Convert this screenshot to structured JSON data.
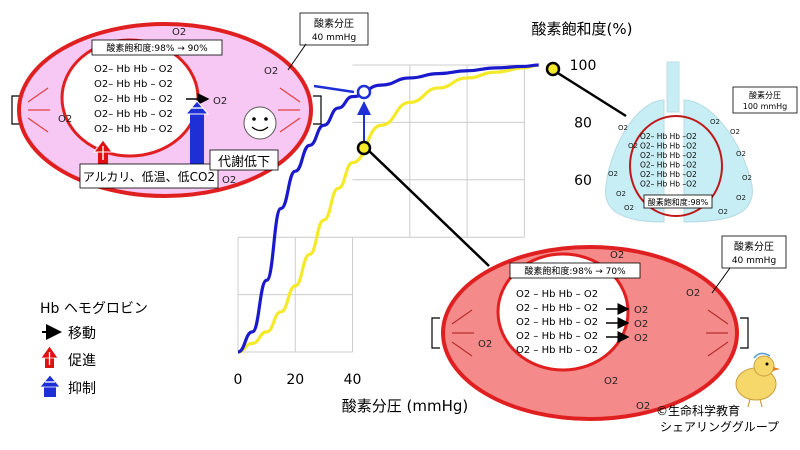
{
  "chart_data": {
    "type": "line",
    "title": "",
    "xlabel": "酸素分圧 (mmHg)",
    "ylabel": "酸素飽和度(%)",
    "x_ticks": [
      "0",
      "20",
      "40"
    ],
    "y_ticks": [
      "100",
      "80",
      "60"
    ],
    "xlim": [
      0,
      110
    ],
    "ylim": [
      0,
      100
    ],
    "grid": true,
    "series": [
      {
        "name": "",
        "color": "#1a1acc",
        "note_color": "blue",
        "x": [
          0,
          5,
          10,
          15,
          20,
          25,
          30,
          35,
          40,
          50,
          60,
          70,
          80,
          90,
          100,
          105
        ],
        "y": [
          0,
          7,
          25,
          50,
          63,
          72,
          79,
          85,
          89,
          93,
          95.5,
          97,
          98,
          99,
          99.5,
          100
        ]
      },
      {
        "name": "",
        "color": "#f5ea2a",
        "note_color": "yellow",
        "x": [
          0,
          5,
          10,
          15,
          20,
          25,
          30,
          35,
          40,
          50,
          60,
          70,
          80,
          90,
          100,
          105
        ],
        "y": [
          0,
          3,
          7,
          14,
          23,
          34,
          46,
          57,
          66,
          79,
          87,
          92,
          95.5,
          97.5,
          99,
          100
        ]
      }
    ]
  },
  "left_cell": {
    "saturation_label": "酸素飽和度:98% → 90%",
    "pressure_label": "酸素分圧",
    "pressure_value": "40 mmHg",
    "hb_rows": [
      "O2– Hb Hb – O2",
      "O2– Hb Hb – O2",
      "O2– Hb Hb – O2",
      "O2– Hb Hb – O2",
      "O2– Hb Hb – O2"
    ],
    "free_o2": "O2",
    "face": "☺",
    "promote_factors": "アルカリ、低温、低CO2",
    "suppress_factor": "代謝低下"
  },
  "right_cell": {
    "saturation_label": "酸素飽和度:98% → 70%",
    "pressure_label": "酸素分圧",
    "pressure_value": "40 mmHg",
    "hb_rows": [
      "O2 – Hb Hb – O2",
      "O2 – Hb Hb – O2",
      "O2 – Hb Hb – O2",
      "O2 – Hb Hb – O2",
      "O2 – Hb Hb – O2"
    ],
    "free_o2": "O2"
  },
  "lung": {
    "pressure_label": "酸素分圧",
    "pressure_value": "100 mmHg",
    "saturation_label": "酸素飽和度:98%",
    "hb_rows": [
      "O2– Hb Hb –O2",
      "O2– Hb Hb –O2",
      "O2– Hb Hb –O2",
      "O2– Hb Hb –O2",
      "O2– Hb Hb –O2",
      "O2– Hb Hb –O2"
    ],
    "free_o2": "O2"
  },
  "legend": {
    "hb": "Hb ヘモグロビン",
    "move": "移動",
    "promote": "促進",
    "suppress": "抑制"
  },
  "credit": {
    "line1": "©生命科学教育",
    "line2": "シェアリンググループ"
  },
  "colors": {
    "cell_border": "#e02020",
    "left_cell_fill": "#f7c8f3",
    "right_cell_fill": "#f58a8a",
    "lung_fill": "#c7edf5",
    "promote": "#e01010",
    "suppress": "#1f2fd6"
  }
}
